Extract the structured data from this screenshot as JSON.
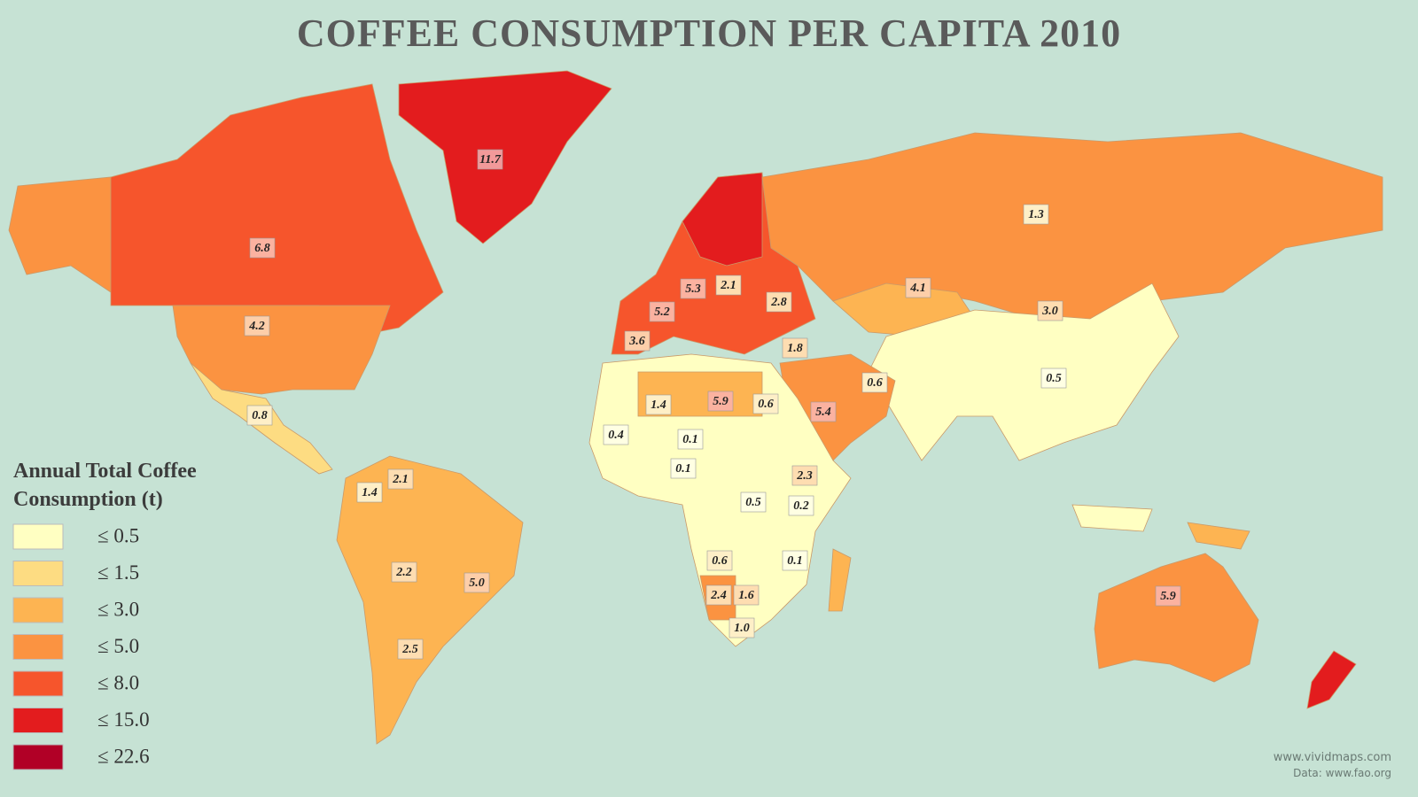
{
  "title": "COFFEE CONSUMPTION PER CAPITA 2010",
  "map": {
    "values": [
      11.7,
      6.8,
      4.2,
      0.8,
      1.4,
      2.1,
      2.2,
      5.0,
      2.5,
      1.3,
      4.1,
      3.0,
      5.3,
      2.1,
      2.8,
      5.2,
      3.6,
      1.8,
      0.6,
      0.5,
      5.4,
      1.4,
      5.9,
      0.6,
      0.4,
      0.1,
      0.1,
      2.3,
      0.5,
      0.2,
      0.6,
      0.1,
      2.4,
      1.6,
      1.0,
      5.9
    ],
    "value_labels": [
      "11.7",
      "6.8",
      "4.2",
      "0.8",
      "1.4",
      "2.1",
      "2.2",
      "5.0",
      "2.5",
      "1.3",
      "4.1",
      "3.0",
      "5.3",
      "2.1",
      "2.8",
      "5.2",
      "3.6",
      "1.8",
      "0.6",
      "0.5",
      "5.4",
      "1.4",
      "5.9",
      "0.6",
      "0.4",
      "0.1",
      "0.1",
      "2.3",
      "0.5",
      "0.2",
      "0.6",
      "0.1",
      "2.4",
      "1.6",
      "1.0",
      "5.9"
    ]
  },
  "legend": {
    "title": "Annual Total Coffee Consumption (t)",
    "items": [
      {
        "label": "≤ 0.5",
        "value": 0.5,
        "color": "#ffffc2"
      },
      {
        "label": "≤ 1.5",
        "value": 1.5,
        "color": "#fddc82"
      },
      {
        "label": "≤ 3.0",
        "value": 3.0,
        "color": "#fdb452"
      },
      {
        "label": "≤ 5.0",
        "value": 5.0,
        "color": "#fb9341"
      },
      {
        "label": "≤ 8.0",
        "value": 8.0,
        "color": "#f6552c"
      },
      {
        "label": "≤ 15.0",
        "value": 15.0,
        "color": "#e31c1e"
      },
      {
        "label": "≤ 22.6",
        "value": 22.6,
        "color": "#b10026"
      }
    ]
  },
  "credits": [
    "www.vividmaps.com",
    "Data: www.fao.org"
  ]
}
